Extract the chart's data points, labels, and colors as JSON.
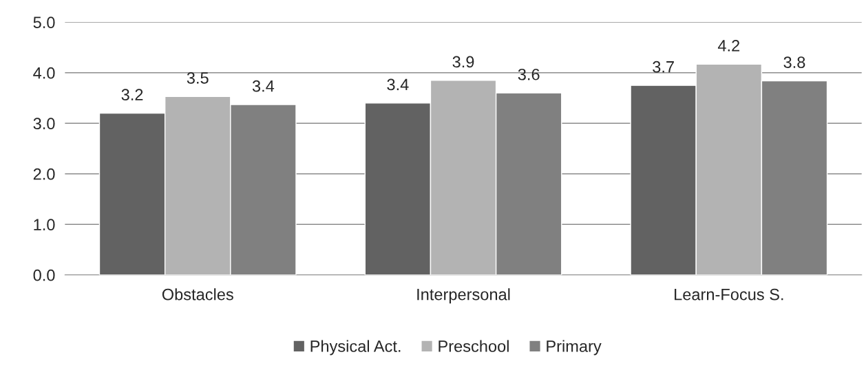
{
  "chart_data": {
    "type": "bar",
    "categories": [
      "Obstacles",
      "Interpersonal",
      "Learn-Focus S."
    ],
    "series": [
      {
        "name": "Physical Act.",
        "color": "#626262",
        "values": [
          3.2,
          3.4,
          3.75
        ],
        "value_labels": [
          "3.2",
          "3.4",
          "3.7"
        ]
      },
      {
        "name": "Preschool",
        "color": "#b3b3b3",
        "values": [
          3.53,
          3.85,
          4.17
        ],
        "value_labels": [
          "3.5",
          "3.9",
          "4.2"
        ]
      },
      {
        "name": "Primary",
        "color": "#808080",
        "values": [
          3.37,
          3.6,
          3.84
        ],
        "value_labels": [
          "3.4",
          "3.6",
          "3.8"
        ]
      }
    ],
    "ylim": [
      0,
      5
    ],
    "yticks": [
      {
        "value": 0,
        "label": "0.0"
      },
      {
        "value": 1,
        "label": "1.0"
      },
      {
        "value": 2,
        "label": "2.0"
      },
      {
        "value": 3,
        "label": "3.0"
      },
      {
        "value": 4,
        "label": "4.0"
      },
      {
        "value": 5,
        "label": "5.0"
      }
    ],
    "grid": "y",
    "legend": "bottom"
  }
}
